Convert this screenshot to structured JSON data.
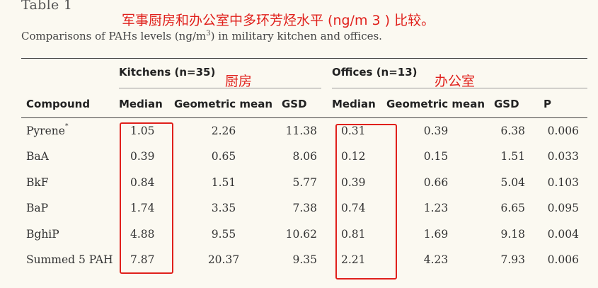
{
  "table_label": "Table 1",
  "cn_title": "军事厨房和办公室中多环芳烃水平 (ng/m 3 ) 比较。",
  "caption": {
    "text_before": "Comparisons of PAHs levels (ng/m",
    "superscript": "3",
    "text_after": ") in military kitchen and offices."
  },
  "groups": {
    "kitchens": "Kitchens (n=35)",
    "offices": "Offices (n=13)"
  },
  "annotations": {
    "kitchens_cn": "厨房",
    "offices_cn": "办公室"
  },
  "headers": {
    "compound": "Compound",
    "k_median": "Median",
    "k_geomean": "Geometric mean",
    "k_gsd": "GSD",
    "o_median": "Median",
    "o_geomean": "Geometric mean",
    "o_gsd": "GSD",
    "p": "P"
  },
  "rows": [
    {
      "compound": "Pyrene",
      "footnote_mark": "*",
      "k_median": "1.05",
      "k_geomean": "2.26",
      "k_gsd": "11.38",
      "o_median": "0.31",
      "o_geomean": "0.39",
      "o_gsd": "6.38",
      "p": "0.006"
    },
    {
      "compound": "BaA",
      "footnote_mark": "",
      "k_median": "0.39",
      "k_geomean": "0.65",
      "k_gsd": "8.06",
      "o_median": "0.12",
      "o_geomean": "0.15",
      "o_gsd": "1.51",
      "p": "0.033"
    },
    {
      "compound": "BkF",
      "footnote_mark": "",
      "k_median": "0.84",
      "k_geomean": "1.51",
      "k_gsd": "5.77",
      "o_median": "0.39",
      "o_geomean": "0.66",
      "o_gsd": "5.04",
      "p": "0.103"
    },
    {
      "compound": "BaP",
      "footnote_mark": "",
      "k_median": "1.74",
      "k_geomean": "3.35",
      "k_gsd": "7.38",
      "o_median": "0.74",
      "o_geomean": "1.23",
      "o_gsd": "6.65",
      "p": "0.095"
    },
    {
      "compound": "BghiP",
      "footnote_mark": "",
      "k_median": "4.88",
      "k_geomean": "9.55",
      "k_gsd": "10.62",
      "o_median": "0.81",
      "o_geomean": "1.69",
      "o_gsd": "9.18",
      "p": "0.004"
    },
    {
      "compound": "Summed 5 PAH",
      "footnote_mark": "",
      "k_median": "7.87",
      "k_geomean": "20.37",
      "k_gsd": "9.35",
      "o_median": "2.21",
      "o_geomean": "4.23",
      "o_gsd": "7.93",
      "p": "0.006"
    }
  ],
  "highlight_color": "#e0201b"
}
